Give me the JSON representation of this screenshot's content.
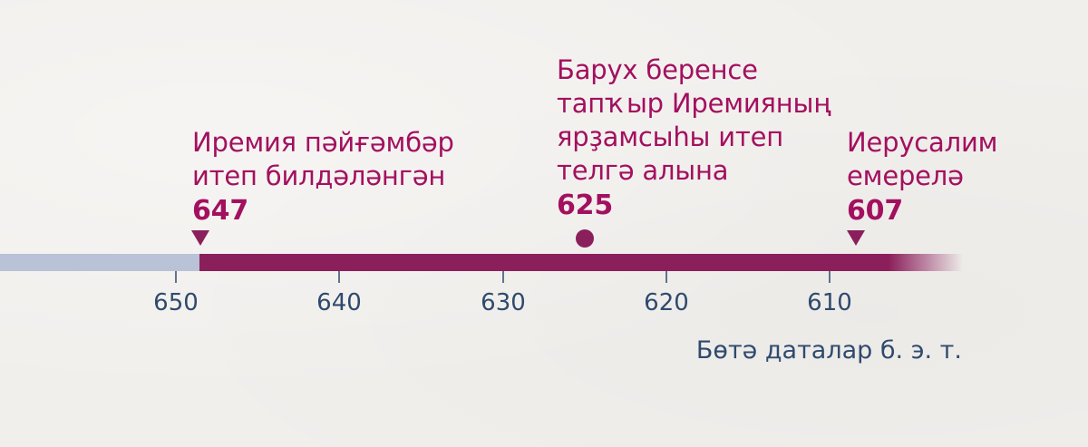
{
  "timeline": {
    "colors": {
      "before": "#b9c2d6",
      "main": "#8b1f5c",
      "accent": "#a3105f",
      "axis_text": "#2f4a6e"
    },
    "ticks": [
      "650",
      "640",
      "630",
      "620",
      "610"
    ],
    "events": [
      {
        "lines": [
          "Иремия пәйғәмбәр",
          "итеп билдәләнгән"
        ],
        "year": "647",
        "marker": "down-triangle-marker"
      },
      {
        "lines": [
          "Барух беренсе",
          "тапҡыр Иремияның",
          "ярҙамсыһы итеп",
          "телгә алына"
        ],
        "year": "625",
        "marker": "circle-marker"
      },
      {
        "lines": [
          "Иерусалим",
          "емерелә"
        ],
        "year": "607",
        "marker": "down-triangle-marker"
      }
    ],
    "footnote": "Бөтә даталар б. э. т."
  }
}
